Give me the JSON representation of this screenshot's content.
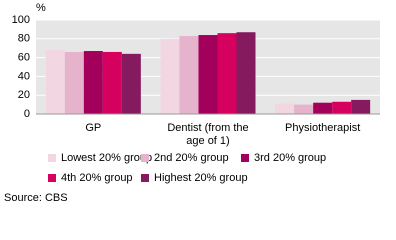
{
  "chart_data": {
    "type": "bar",
    "y_label": "%",
    "categories": [
      "GP",
      "Dentist (from the age of 1)",
      "Physiotherapist"
    ],
    "series": [
      {
        "name": "Lowest 20% group",
        "color": "#f2d6e2",
        "values": [
          68,
          80,
          11
        ]
      },
      {
        "name": "2nd 20% group",
        "color": "#e6b3cc",
        "values": [
          66,
          83,
          10
        ]
      },
      {
        "name": "3rd 20% group",
        "color": "#a3005c",
        "values": [
          67,
          84,
          12
        ]
      },
      {
        "name": "4th 20% group",
        "color": "#d6005f",
        "values": [
          66,
          86,
          13
        ]
      },
      {
        "name": "Highest 20% group",
        "color": "#861a5e",
        "values": [
          64,
          87,
          15
        ]
      }
    ],
    "ylim": [
      0,
      100
    ],
    "yticks": [
      0,
      20,
      40,
      60,
      80,
      100
    ],
    "grid": true,
    "source": "Source: CBS"
  }
}
